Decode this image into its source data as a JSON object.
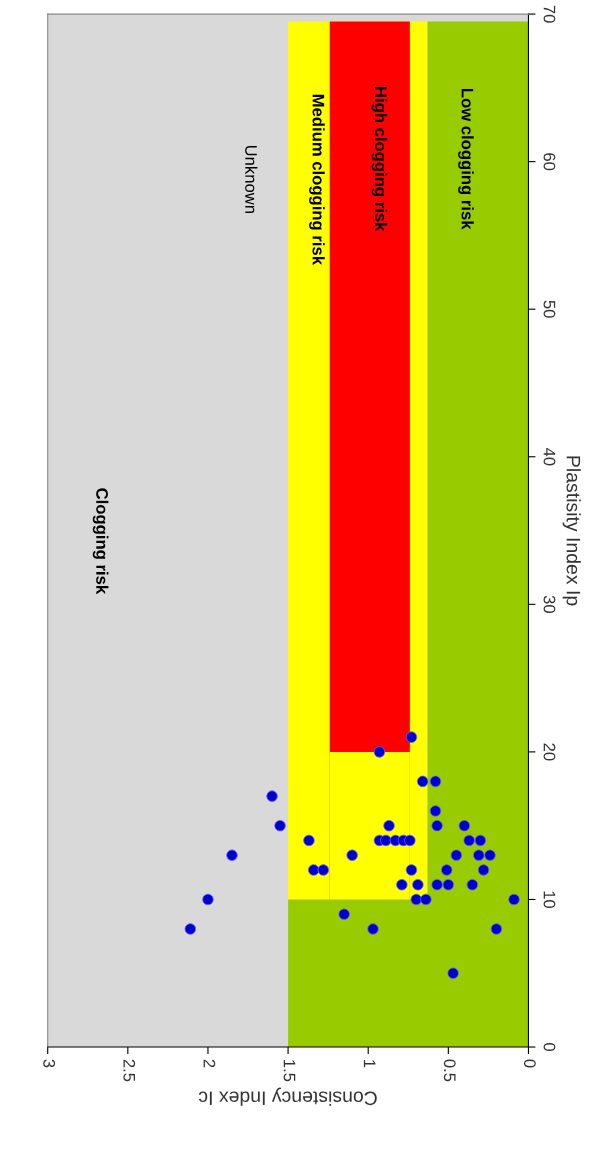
{
  "chart_data": {
    "type": "area",
    "xlabel": "Consistency Index Ic",
    "ylabel": "Plastisity Index Ip",
    "series": [
      {
        "color": "#ffff00",
        "x": [
          0.63,
          1.5
        ],
        "values": [
          69.5,
          69.5
        ]
      },
      {
        "color": "#ff0000",
        "x": [
          0.74,
          1.24
        ],
        "values": [
          69.5,
          69.5
        ]
      },
      {
        "color": "#ffff00",
        "x": [
          0.74,
          1.24
        ],
        "values": [
          20,
          20
        ]
      },
      {
        "color": "#99cc00",
        "x": [
          0,
          1.5
        ],
        "values": [
          10,
          10
        ]
      },
      {
        "color": "#99cc00",
        "x": [
          0,
          0.63
        ],
        "values": [
          69.5,
          69.5
        ]
      },
      {
        "type": "scatter",
        "marker": "circle",
        "color": "#0000cc",
        "x": [
          2.11,
          2.0,
          1.85,
          1.6,
          1.55,
          1.37,
          1.34,
          1.28,
          1.1,
          1.15,
          0.97,
          0.93,
          0.73,
          0.87,
          0.93,
          0.89,
          0.83,
          0.78,
          0.74,
          0.66,
          0.58,
          0.58,
          0.57,
          0.73,
          0.79,
          0.69,
          0.57,
          0.5,
          0.35,
          0.7,
          0.64,
          0.09,
          0.51,
          0.45,
          0.4,
          0.37,
          0.3,
          0.31,
          0.24,
          0.28,
          0.2,
          0.47
        ],
        "values": [
          8,
          10,
          13,
          17,
          15,
          14,
          12,
          12,
          13,
          9,
          8,
          20,
          21,
          15,
          14,
          14,
          14,
          14,
          14,
          18,
          18,
          16,
          15,
          12,
          11,
          11,
          11,
          11,
          11,
          10,
          10,
          10,
          12,
          13,
          15,
          14,
          14,
          13,
          13,
          12,
          8,
          5
        ]
      }
    ],
    "xlim": [
      3,
      0
    ],
    "xticks": [
      0,
      0.5,
      1,
      1.5,
      2,
      2.5,
      3
    ],
    "ylim": [
      0,
      70
    ],
    "yticks": [
      0,
      10,
      20,
      30,
      40,
      50,
      60,
      70
    ],
    "annotations": [
      "Clogging risk",
      "Unknown",
      "Medium clogging risk",
      "High clogging risk",
      "Low clogging risk"
    ]
  }
}
